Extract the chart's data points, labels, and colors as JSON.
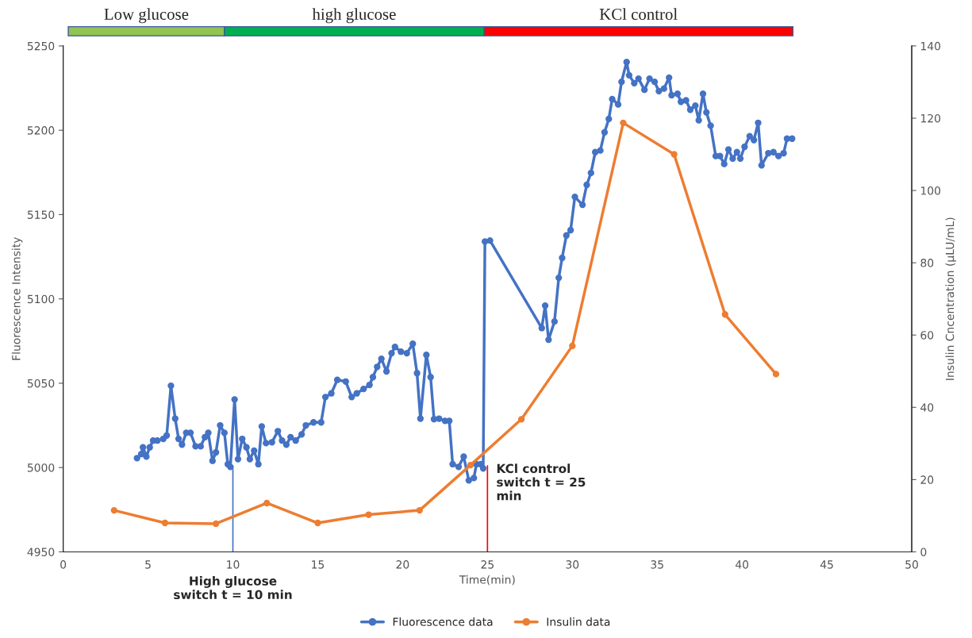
{
  "chart_data": {
    "type": "line",
    "xlabel": "Time(min)",
    "ylabel": "Fluorescence Intensity",
    "y2label": "Insulin Cncentration (µLU/mL)",
    "xlim": [
      0,
      50
    ],
    "xticks": [
      0,
      5,
      10,
      15,
      20,
      25,
      30,
      35,
      40,
      45,
      50
    ],
    "ylim": [
      4950,
      5250
    ],
    "yticks": [
      4950,
      5000,
      5050,
      5100,
      5150,
      5200,
      5250
    ],
    "y2lim": [
      0,
      140
    ],
    "y2ticks": [
      0,
      20,
      40,
      60,
      80,
      100,
      120,
      140
    ],
    "grid": false,
    "legend": "bottom",
    "marker": "circle",
    "line_style": "solid",
    "series": [
      {
        "name": "Fluorescence data",
        "color": "#4472c4",
        "x": [
          4.35,
          4.6,
          4.7,
          4.9,
          5.1,
          5.3,
          5.55,
          5.9,
          6.1,
          6.35,
          6.6,
          6.8,
          7.0,
          7.25,
          7.5,
          7.8,
          8.1,
          8.35,
          8.55,
          8.8,
          9.0,
          9.25,
          9.5,
          9.7,
          9.85,
          10.1,
          10.3,
          10.55,
          10.8,
          11.0,
          11.25,
          11.5,
          11.7,
          11.95,
          12.3,
          12.65,
          12.9,
          13.15,
          13.4,
          13.7,
          14.05,
          14.3,
          14.75,
          15.2,
          15.45,
          15.8,
          16.15,
          16.65,
          17.0,
          17.3,
          17.7,
          18.05,
          18.25,
          18.5,
          18.75,
          19.05,
          19.35,
          19.55,
          19.9,
          20.25,
          20.6,
          20.85,
          21.05,
          21.4,
          21.65,
          21.85,
          22.15,
          22.5,
          22.75,
          22.95,
          23.3,
          23.6,
          23.9,
          24.2,
          24.35,
          24.6,
          24.75,
          24.85,
          25.15,
          28.2,
          28.4,
          28.6,
          28.95,
          29.2,
          29.4,
          29.65,
          29.9,
          30.15,
          30.6,
          30.85,
          31.1,
          31.35,
          31.65,
          31.9,
          32.15,
          32.35,
          32.7,
          32.9,
          33.2,
          33.35,
          33.65,
          33.9,
          34.25,
          34.55,
          34.85,
          35.1,
          35.4,
          35.7,
          35.85,
          36.2,
          36.4,
          36.7,
          36.95,
          37.25,
          37.45,
          37.7,
          37.9,
          38.15,
          38.45,
          38.7,
          38.95,
          39.2,
          39.45,
          39.7,
          39.9,
          40.15,
          40.45,
          40.7,
          40.95,
          41.15,
          41.55,
          41.85,
          42.15,
          42.45,
          42.65,
          42.95
        ],
        "values": [
          5005.6,
          5008,
          5012,
          5006.5,
          5012,
          5016,
          5016,
          5017,
          5019,
          5048.5,
          5029,
          5017,
          5013.6,
          5020.6,
          5020.6,
          5012.6,
          5012.6,
          5018,
          5020.6,
          5004,
          5009,
          5025,
          5020.6,
          5002,
          5000.4,
          5040.4,
          5005,
          5017,
          5012,
          5005,
          5010,
          5002,
          5024.4,
          5014.5,
          5015,
          5021.6,
          5016,
          5013.6,
          5018,
          5016,
          5019.7,
          5025,
          5026.8,
          5026.8,
          5041.8,
          5044,
          5052,
          5051,
          5041.8,
          5044,
          5046.6,
          5049,
          5053.6,
          5059.7,
          5064.5,
          5057,
          5067.8,
          5071.5,
          5068.7,
          5067.8,
          5073.4,
          5056,
          5029,
          5066.8,
          5053.6,
          5028.7,
          5029,
          5027.7,
          5027.7,
          5002,
          5000.4,
          5006.5,
          4992.4,
          4993.8,
          5002,
          5002,
          4999.5,
          5134,
          5134.6,
          5082.7,
          5096,
          5075.8,
          5086.6,
          5112.5,
          5124.3,
          5137.6,
          5140.8,
          5160.5,
          5155.8,
          5167.6,
          5174.7,
          5187,
          5188,
          5198.8,
          5206.7,
          5218.5,
          5215.3,
          5228.7,
          5240.4,
          5232.6,
          5227.9,
          5230.6,
          5224,
          5230.6,
          5228.7,
          5223.2,
          5224.7,
          5231.2,
          5220.8,
          5221.6,
          5216.9,
          5217.7,
          5212.2,
          5214.6,
          5205.9,
          5221.6,
          5210.6,
          5202.7,
          5184.7,
          5184.7,
          5180,
          5188.6,
          5183.2,
          5187,
          5183.2,
          5190.2,
          5196.5,
          5194.2,
          5204.4,
          5179.2,
          5186.4,
          5187,
          5184.7,
          5186.4,
          5195,
          5195
        ]
      },
      {
        "name": "Insulin data",
        "color": "#ed7d31",
        "axis": "y2",
        "x": [
          3,
          6,
          9,
          12,
          15,
          18,
          21,
          24,
          27,
          30,
          33,
          36,
          39,
          42
        ],
        "values": [
          11.5,
          8,
          7.8,
          13.5,
          8,
          10.3,
          11.5,
          24,
          36.7,
          57,
          118.7,
          110,
          65.7,
          49.2
        ]
      }
    ],
    "ref_lines": [
      {
        "axis": "x",
        "value": 10,
        "label": "High glucose\nswitch t = 10 min",
        "color": "#4472c4"
      },
      {
        "axis": "x",
        "value": 25,
        "label": "KCl control\nswitch t = 25\nmin",
        "color": "#ff0000"
      }
    ],
    "annotations": [
      "Low glucose",
      "high glucose",
      "KCl control"
    ]
  }
}
